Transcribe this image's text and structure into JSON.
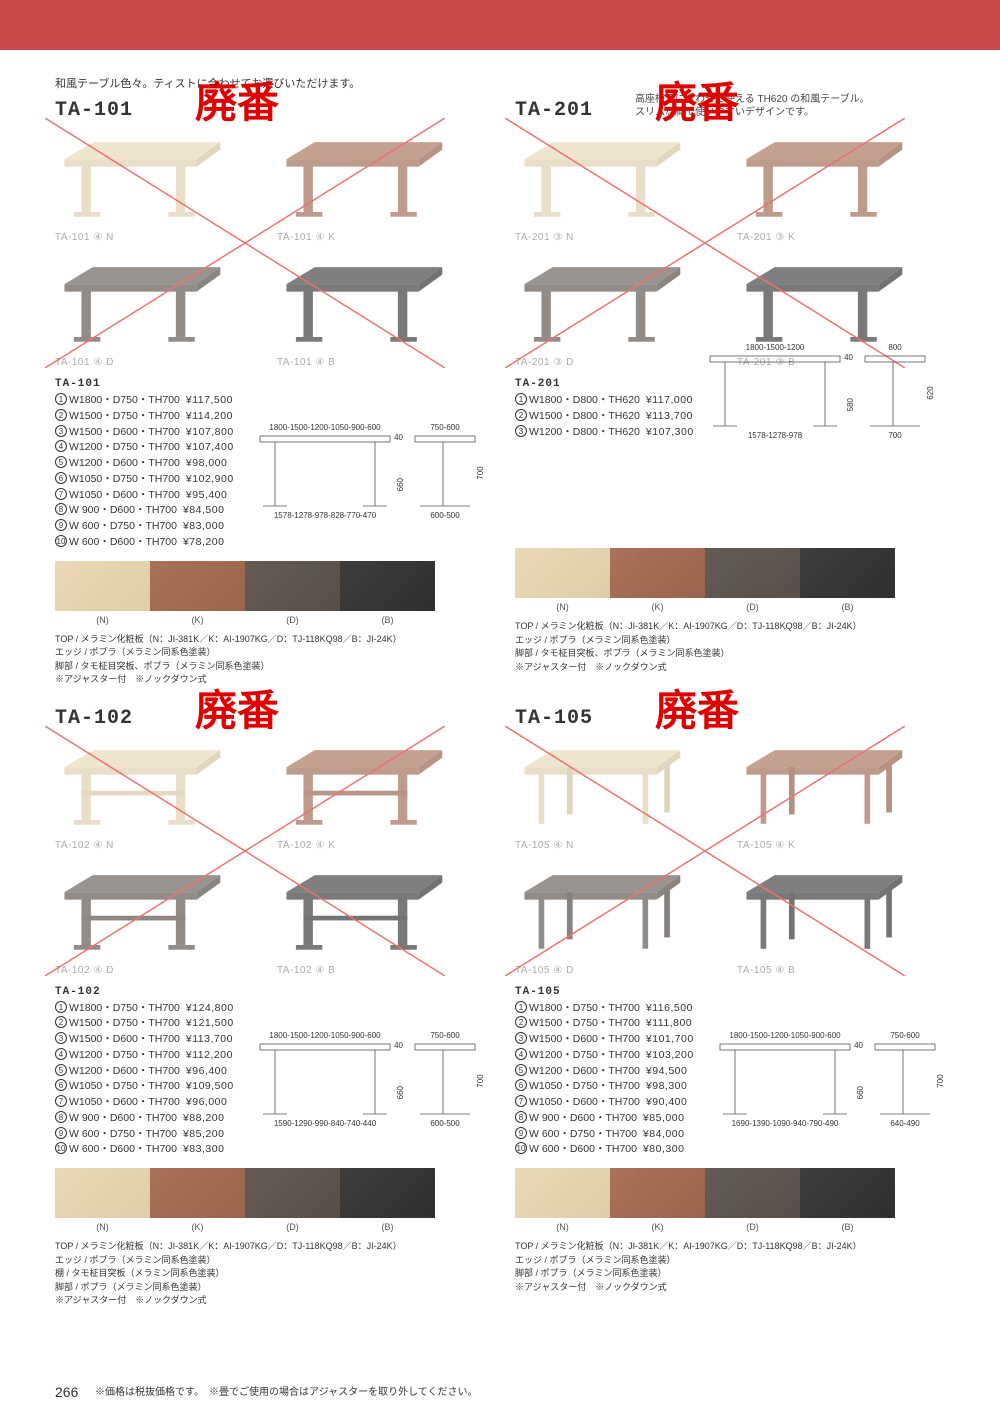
{
  "page_number": "266",
  "top_bar_color": "#c94a4a",
  "haiban_text": "廃番",
  "haiban_color": "#e00000",
  "intro": "和風テーブル色々。ティストに合わせてお選びいただけます。",
  "footer_note": "※価格は税抜価格です。　※畳でご使用の場合はアジャスターを取り外してください。",
  "swatch_codes": [
    "(N)",
    "(K)",
    "(D)",
    "(B)"
  ],
  "swatch_colors": [
    "#d8c49a",
    "#8a4a2e",
    "#3a3028",
    "#0c0c0c"
  ],
  "sections": [
    {
      "id": "TA-101",
      "sub": "",
      "variants": [
        {
          "label": "TA-101 ④ N",
          "color": "#d8c49a"
        },
        {
          "label": "TA-101 ④ K",
          "color": "#8a4a2e"
        },
        {
          "label": "TA-101 ④ D",
          "color": "#3a3028"
        },
        {
          "label": "TA-101 ④ B",
          "color": "#0c0c0c"
        }
      ],
      "pricing_head": "TA-101",
      "pricing": [
        {
          "n": "①",
          "dim": "W1800・D750・TH700",
          "price": "¥117,500"
        },
        {
          "n": "②",
          "dim": "W1500・D750・TH700",
          "price": "¥114,200"
        },
        {
          "n": "③",
          "dim": "W1500・D600・TH700",
          "price": "¥107,800"
        },
        {
          "n": "④",
          "dim": "W1200・D750・TH700",
          "price": "¥107,400"
        },
        {
          "n": "⑤",
          "dim": "W1200・D600・TH700",
          "price": "¥98,000"
        },
        {
          "n": "⑥",
          "dim": "W1050・D750・TH700",
          "price": "¥102,900"
        },
        {
          "n": "⑦",
          "dim": "W1050・D600・TH700",
          "price": "¥95,400"
        },
        {
          "n": "⑧",
          "dim": "W 900・D600・TH700",
          "price": "¥84,500"
        },
        {
          "n": "⑨",
          "dim": "W 600・D750・TH700",
          "price": "¥83,000"
        },
        {
          "n": "⑩",
          "dim": "W 600・D600・TH700",
          "price": "¥78,200"
        }
      ],
      "diag_top": "1800-1500-1200-1050-900-600",
      "diag_bottom": "1578-1278-978-828-770-470",
      "diag_right_top": "750-600",
      "diag_right_bottom": "600-500",
      "diag_h1": "40",
      "diag_h2": "660",
      "diag_h3": "700",
      "notes": [
        "TOP / メラミン化粧板（N：JI-381K／K：AI-1907KG／D：TJ-118KQ98／B：JI-24K）",
        "エッジ / ポプラ（メラミン同系色塗装）",
        "脚部 / タモ柾目突板、ポプラ（メラミン同系色塗装）",
        "※アジャスター付　※ノックダウン式"
      ]
    },
    {
      "id": "TA-201",
      "sub": "高座椅子に合わせて使える TH620 の和風テーブル。\nスリムな脚で使いやすいデザインです。",
      "variants": [
        {
          "label": "TA-201 ③ N",
          "color": "#d8c49a"
        },
        {
          "label": "TA-201 ③ K",
          "color": "#8a4a2e"
        },
        {
          "label": "TA-201 ③ D",
          "color": "#3a3028"
        },
        {
          "label": "TA-201 ③ B",
          "color": "#0c0c0c"
        }
      ],
      "pricing_head": "TA-201",
      "pricing": [
        {
          "n": "①",
          "dim": "W1800・D800・TH620",
          "price": "¥117,000"
        },
        {
          "n": "②",
          "dim": "W1500・D800・TH620",
          "price": "¥113,700"
        },
        {
          "n": "③",
          "dim": "W1200・D800・TH620",
          "price": "¥107,300"
        }
      ],
      "diag_top": "1800-1500-1200",
      "diag_bottom": "1578-1278-978",
      "diag_right_top": "800",
      "diag_right_bottom": "700",
      "diag_h1": "40",
      "diag_h2": "580",
      "diag_h3": "620",
      "notes": [
        "TOP / メラミン化粧板（N：JI-381K／K：AI-1907KG／D：TJ-118KQ98／B：JI-24K）",
        "エッジ / ポプラ（メラミン同系色塗装）",
        "脚部 / タモ柾目突板、ポプラ（メラミン同系色塗装）",
        "※アジャスター付　※ノックダウン式"
      ]
    },
    {
      "id": "TA-102",
      "sub": "",
      "variants": [
        {
          "label": "TA-102 ④ N",
          "color": "#d8c49a"
        },
        {
          "label": "TA-102 ④ K",
          "color": "#8a4a2e"
        },
        {
          "label": "TA-102 ④ D",
          "color": "#3a3028"
        },
        {
          "label": "TA-102 ④ B",
          "color": "#0c0c0c"
        }
      ],
      "pricing_head": "TA-102",
      "pricing": [
        {
          "n": "①",
          "dim": "W1800・D750・TH700",
          "price": "¥124,800"
        },
        {
          "n": "②",
          "dim": "W1500・D750・TH700",
          "price": "¥121,500"
        },
        {
          "n": "③",
          "dim": "W1500・D600・TH700",
          "price": "¥113,700"
        },
        {
          "n": "④",
          "dim": "W1200・D750・TH700",
          "price": "¥112,200"
        },
        {
          "n": "⑤",
          "dim": "W1200・D600・TH700",
          "price": "¥96,400"
        },
        {
          "n": "⑥",
          "dim": "W1050・D750・TH700",
          "price": "¥109,500"
        },
        {
          "n": "⑦",
          "dim": "W1050・D600・TH700",
          "price": "¥96,000"
        },
        {
          "n": "⑧",
          "dim": "W 900・D600・TH700",
          "price": "¥88,200"
        },
        {
          "n": "⑨",
          "dim": "W 600・D750・TH700",
          "price": "¥85,200"
        },
        {
          "n": "⑩",
          "dim": "W 600・D600・TH700",
          "price": "¥83,300"
        }
      ],
      "diag_top": "1800-1500-1200-1050-900-600",
      "diag_bottom": "1590-1290-990-840-740-440",
      "diag_right_top": "750-600",
      "diag_right_bottom": "600-500",
      "diag_h1": "40",
      "diag_h2": "660",
      "diag_h3": "700",
      "notes": [
        "TOP / メラミン化粧板（N：JI-381K／K：AI-1907KG／D：TJ-118KQ98／B：JI-24K）",
        "エッジ / ポプラ（メラミン同系色塗装）",
        "棚 / タモ柾目突板（メラミン同系色塗装）",
        "脚部 / ポプラ（メラミン同系色塗装）",
        "※アジャスター付　※ノックダウン式"
      ]
    },
    {
      "id": "TA-105",
      "sub": "",
      "variants": [
        {
          "label": "TA-105 ④ N",
          "color": "#d8c49a"
        },
        {
          "label": "TA-105 ④ K",
          "color": "#8a4a2e"
        },
        {
          "label": "TA-105 ④ D",
          "color": "#3a3028"
        },
        {
          "label": "TA-105 ④ B",
          "color": "#0c0c0c"
        }
      ],
      "pricing_head": "TA-105",
      "pricing": [
        {
          "n": "①",
          "dim": "W1800・D750・TH700",
          "price": "¥116,500"
        },
        {
          "n": "②",
          "dim": "W1500・D750・TH700",
          "price": "¥111,800"
        },
        {
          "n": "③",
          "dim": "W1500・D600・TH700",
          "price": "¥101,700"
        },
        {
          "n": "④",
          "dim": "W1200・D750・TH700",
          "price": "¥103,200"
        },
        {
          "n": "⑤",
          "dim": "W1200・D600・TH700",
          "price": "¥94,500"
        },
        {
          "n": "⑥",
          "dim": "W1050・D750・TH700",
          "price": "¥98,300"
        },
        {
          "n": "⑦",
          "dim": "W1050・D600・TH700",
          "price": "¥90,400"
        },
        {
          "n": "⑧",
          "dim": "W 900・D600・TH700",
          "price": "¥85,000"
        },
        {
          "n": "⑨",
          "dim": "W 600・D750・TH700",
          "price": "¥84,000"
        },
        {
          "n": "⑩",
          "dim": "W 600・D600・TH700",
          "price": "¥80,300"
        }
      ],
      "diag_top": "1800-1500-1200-1050-900-600",
      "diag_bottom": "1690-1390-1090-940-790-490",
      "diag_right_top": "750-600",
      "diag_right_bottom": "640-490",
      "diag_h1": "40",
      "diag_h2": "660",
      "diag_h3": "700",
      "notes": [
        "TOP / メラミン化粧板（N：JI-381K／K：AI-1907KG／D：TJ-118KQ98／B：JI-24K）",
        "エッジ / ポプラ（メラミン同系色塗装）",
        "脚部 / ポプラ（メラミン同系色塗装）",
        "※アジャスター付　※ノックダウン式"
      ]
    }
  ]
}
